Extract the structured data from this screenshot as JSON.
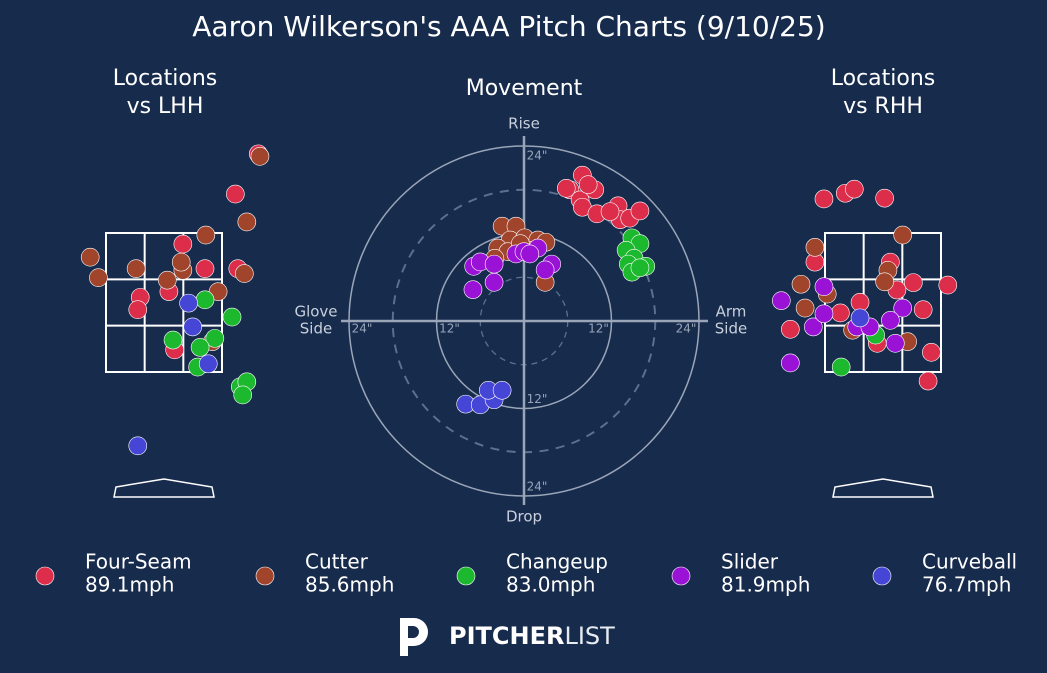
{
  "title": "Aaron Wilkerson's AAA Pitch Charts (9/10/25)",
  "pitch_types": [
    {
      "name": "Four-Seam",
      "color": "#dc2e4b",
      "velocity": {
        "value": 89.1,
        "label": "89.1mph"
      }
    },
    {
      "name": "Cutter",
      "color": "#a0442c",
      "velocity": {
        "value": 85.6,
        "label": "85.6mph"
      }
    },
    {
      "name": "Changeup",
      "color": "#1cb82e",
      "velocity": {
        "value": 83.0,
        "label": "83.0mph"
      }
    },
    {
      "name": "Slider",
      "color": "#9a12d6",
      "velocity": {
        "value": 81.9,
        "label": "81.9mph"
      }
    },
    {
      "name": "Curveball",
      "color": "#4646d6",
      "velocity": {
        "value": 76.7,
        "label": "76.7mph"
      }
    }
  ],
  "chart_data": [
    {
      "type": "scatter",
      "title": [
        "Locations",
        "vs LHH"
      ],
      "strike_zone": true,
      "xlim": [
        -2,
        2
      ],
      "ylim": [
        -0.5,
        4.5
      ],
      "series": [
        {
          "x": [
            1.15,
            0.87,
            0.23,
            0.5,
            0.9,
            -0.29,
            0.06,
            -0.32,
            0.13
          ],
          "y": [
            4.16,
            3.67,
            3.06,
            2.76,
            2.76,
            2.41,
            2.48,
            2.26,
            1.77
          ]
        },
        {
          "x": [
            1.17,
            1.01,
            0.51,
            -0.9,
            -0.8,
            -0.34,
            0.04,
            0.23,
            0.21,
            0.98,
            0.66,
            0.59
          ],
          "y": [
            4.13,
            3.33,
            3.17,
            2.9,
            2.65,
            2.76,
            2.62,
            2.74,
            2.84,
            2.7,
            2.48,
            1.87
          ]
        },
        {
          "x": [
            0.5,
            0.83,
            0.11,
            0.62,
            0.44,
            0.41,
            0.93,
            1.01,
            0.96
          ],
          "y": [
            2.38,
            2.17,
            1.89,
            1.91,
            1.8,
            1.56,
            1.32,
            1.38,
            1.22
          ]
        },
        {
          "x": [],
          "y": []
        },
        {
          "x": [
            0.3,
            0.35,
            0.54,
            -0.32
          ],
          "y": [
            2.34,
            2.05,
            1.6,
            0.6
          ]
        }
      ]
    },
    {
      "type": "scatter",
      "title": [
        "Movement"
      ],
      "grid": "circular",
      "xlim": [
        -24,
        24
      ],
      "ylim": [
        -24,
        24
      ],
      "xticks": [
        {
          "value": -24,
          "label": "24\""
        },
        {
          "value": -12,
          "label": "12\""
        },
        {
          "value": 12,
          "label": "12\""
        },
        {
          "value": 24,
          "label": "24\""
        }
      ],
      "yticks": [
        {
          "value": 24,
          "label": "24\""
        },
        {
          "value": -12,
          "label": "12\""
        },
        {
          "value": -24,
          "label": "24\""
        }
      ],
      "labels": {
        "top": "Rise",
        "bottom": "Drop",
        "left": [
          "Glove",
          "Side"
        ],
        "right": [
          "Arm",
          "Side"
        ]
      },
      "series": [
        {
          "x": [
            8.0,
            6.3,
            7.7,
            9.7,
            8.0,
            10.0,
            12.9,
            13.2,
            11.8,
            14.5,
            15.9,
            5.8,
            8.8
          ],
          "y": [
            20.0,
            18.0,
            16.6,
            18.0,
            15.6,
            14.7,
            15.8,
            13.9,
            15.0,
            14.1,
            15.1,
            18.2,
            18.7
          ]
        },
        {
          "x": [
            -3.0,
            -1.1,
            -1.9,
            0.1,
            1.9,
            3.0,
            -3.6,
            -2.2,
            -4.0,
            0.8,
            2.9,
            -0.5
          ],
          "y": [
            13.0,
            13.0,
            11.1,
            11.4,
            11.1,
            10.8,
            10.0,
            9.5,
            8.6,
            9.7,
            5.3,
            10.6
          ]
        },
        {
          "x": [
            14.8,
            15.9,
            14.0,
            15.1,
            14.3,
            16.7,
            14.8,
            15.9
          ],
          "y": [
            11.4,
            10.6,
            9.7,
            8.6,
            7.8,
            7.5,
            6.7,
            7.3
          ]
        },
        {
          "x": [
            -6.9,
            -6.0,
            -4.1,
            -4.1,
            -7.0,
            -1.1,
            0,
            1.9,
            0.8,
            3.8,
            2.9
          ],
          "y": [
            7.5,
            8.1,
            7.8,
            5.3,
            4.3,
            9.2,
            9.5,
            10.0,
            9.2,
            7.8,
            7.0
          ]
        },
        {
          "x": [
            -8.0,
            -6.0,
            -4.1,
            -4.9,
            -3.0
          ],
          "y": [
            -11.4,
            -11.5,
            -10.8,
            -9.5,
            -9.5
          ]
        }
      ]
    },
    {
      "type": "scatter",
      "title": [
        "Locations",
        "vs RHH"
      ],
      "strike_zone": true,
      "xlim": [
        -2,
        2
      ],
      "ylim": [
        -0.5,
        4.5
      ],
      "series": [
        {
          "x": [
            -0.72,
            -0.46,
            -0.35,
            0.02,
            -0.83,
            0.09,
            0.17,
            0.37,
            0.79,
            0.49,
            -0.28,
            -0.52,
            -1.13,
            -0.07,
            0.59,
            0.55
          ],
          "y": [
            3.61,
            3.68,
            3.73,
            3.62,
            2.84,
            2.84,
            2.5,
            2.59,
            2.56,
            2.26,
            2.35,
            2.22,
            2.02,
            1.85,
            1.74,
            1.39
          ]
        },
        {
          "x": [
            0.24,
            -0.83,
            0.06,
            -1.0,
            0.02,
            -0.68,
            -0.95,
            -0.37,
            0.3
          ],
          "y": [
            3.17,
            3.02,
            2.74,
            2.57,
            2.6,
            2.45,
            2.28,
            2.01,
            1.87
          ]
        },
        {
          "x": [
            -0.09,
            -0.51
          ],
          "y": [
            1.95,
            1.56
          ]
        },
        {
          "x": [
            -1.24,
            -0.72,
            0.24,
            0.09,
            -0.32,
            -0.85,
            -0.72,
            -0.16,
            0.15,
            -1.13
          ],
          "y": [
            2.37,
            2.54,
            2.28,
            2.13,
            2.05,
            2.05,
            2.21,
            2.05,
            1.85,
            1.61
          ]
        },
        {
          "x": [
            -0.28
          ],
          "y": [
            2.16
          ]
        }
      ]
    }
  ],
  "footer": {
    "logo_bold": "PITCHER",
    "logo_light": "LIST"
  }
}
